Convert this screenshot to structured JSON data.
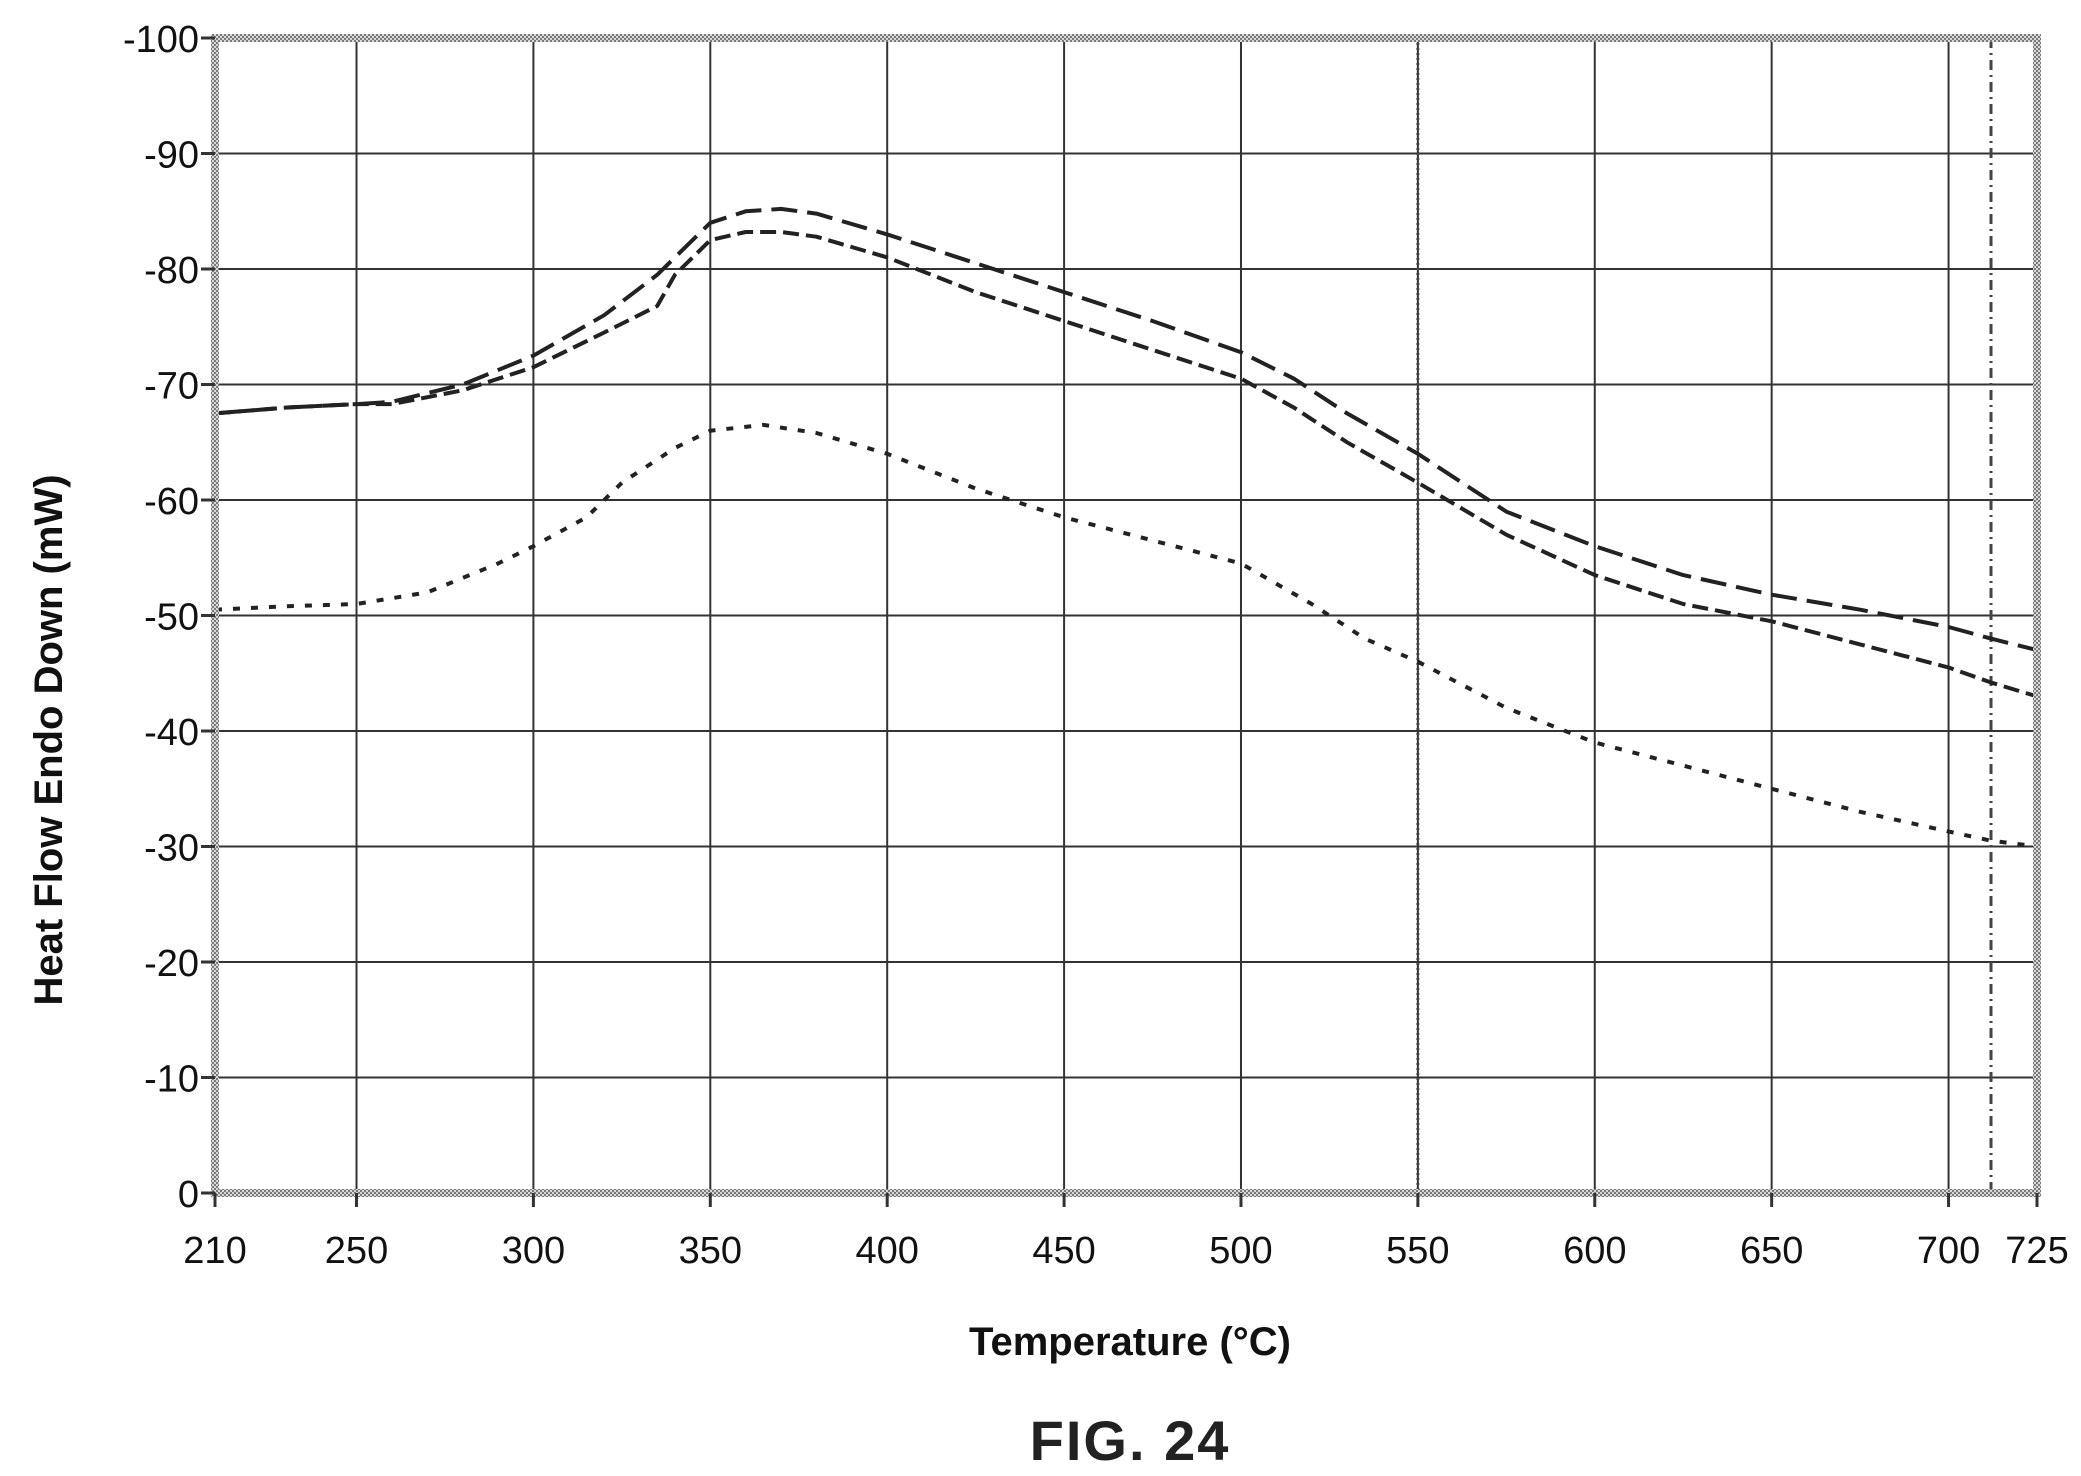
{
  "chart_data": {
    "type": "line",
    "xlabel": "Temperature (°C)",
    "ylabel": "Heat Flow Endo Down (mW)",
    "caption": "FIG. 24",
    "xlim": [
      210,
      725
    ],
    "ylim": [
      0,
      -100
    ],
    "x_ticks": [
      210,
      250,
      300,
      350,
      400,
      450,
      500,
      550,
      600,
      650,
      700,
      725
    ],
    "y_ticks": [
      0,
      -10,
      -20,
      -30,
      -40,
      -50,
      -60,
      -70,
      -80,
      -90,
      -100
    ],
    "grid": true,
    "vertical_markers": [
      550,
      712
    ],
    "series": [
      {
        "style": "long-dash",
        "points": [
          [
            210,
            -67.5
          ],
          [
            230,
            -68
          ],
          [
            250,
            -68.3
          ],
          [
            260,
            -68.5
          ],
          [
            280,
            -70
          ],
          [
            300,
            -72.5
          ],
          [
            320,
            -76
          ],
          [
            335,
            -79.5
          ],
          [
            340,
            -81
          ],
          [
            350,
            -84
          ],
          [
            360,
            -85
          ],
          [
            370,
            -85.2
          ],
          [
            380,
            -84.8
          ],
          [
            400,
            -83
          ],
          [
            425,
            -80.5
          ],
          [
            450,
            -78
          ],
          [
            475,
            -75.5
          ],
          [
            500,
            -72.8
          ],
          [
            515,
            -70.5
          ],
          [
            530,
            -67.5
          ],
          [
            550,
            -64
          ],
          [
            575,
            -59
          ],
          [
            600,
            -56
          ],
          [
            625,
            -53.5
          ],
          [
            650,
            -51.8
          ],
          [
            675,
            -50.5
          ],
          [
            700,
            -49
          ],
          [
            712,
            -48
          ],
          [
            725,
            -47
          ]
        ]
      },
      {
        "style": "medium-dash",
        "points": [
          [
            210,
            -67.5
          ],
          [
            230,
            -68
          ],
          [
            250,
            -68.3
          ],
          [
            260,
            -68.3
          ],
          [
            280,
            -69.5
          ],
          [
            300,
            -71.5
          ],
          [
            320,
            -74.5
          ],
          [
            335,
            -76.8
          ],
          [
            340,
            -79.5
          ],
          [
            350,
            -82.5
          ],
          [
            360,
            -83.2
          ],
          [
            370,
            -83.2
          ],
          [
            380,
            -82.8
          ],
          [
            400,
            -81
          ],
          [
            425,
            -78
          ],
          [
            450,
            -75.5
          ],
          [
            475,
            -73
          ],
          [
            500,
            -70.5
          ],
          [
            515,
            -68
          ],
          [
            530,
            -65
          ],
          [
            550,
            -61.5
          ],
          [
            575,
            -57
          ],
          [
            600,
            -53.5
          ],
          [
            625,
            -51
          ],
          [
            650,
            -49.5
          ],
          [
            675,
            -47.5
          ],
          [
            700,
            -45.5
          ],
          [
            712,
            -44.2
          ],
          [
            725,
            -43
          ]
        ]
      },
      {
        "style": "dotted",
        "points": [
          [
            210,
            -50.5
          ],
          [
            230,
            -50.8
          ],
          [
            250,
            -51
          ],
          [
            270,
            -52
          ],
          [
            290,
            -54.5
          ],
          [
            300,
            -56
          ],
          [
            315,
            -58.5
          ],
          [
            325,
            -61.5
          ],
          [
            340,
            -64.5
          ],
          [
            350,
            -66
          ],
          [
            365,
            -66.5
          ],
          [
            380,
            -65.8
          ],
          [
            400,
            -64
          ],
          [
            425,
            -61
          ],
          [
            450,
            -58.5
          ],
          [
            475,
            -56.5
          ],
          [
            500,
            -54.5
          ],
          [
            520,
            -51
          ],
          [
            535,
            -48
          ],
          [
            550,
            -46
          ],
          [
            575,
            -42
          ],
          [
            600,
            -39
          ],
          [
            625,
            -37
          ],
          [
            650,
            -35
          ],
          [
            675,
            -33
          ],
          [
            700,
            -31.3
          ],
          [
            712,
            -30.5
          ],
          [
            725,
            -30
          ]
        ]
      }
    ]
  }
}
